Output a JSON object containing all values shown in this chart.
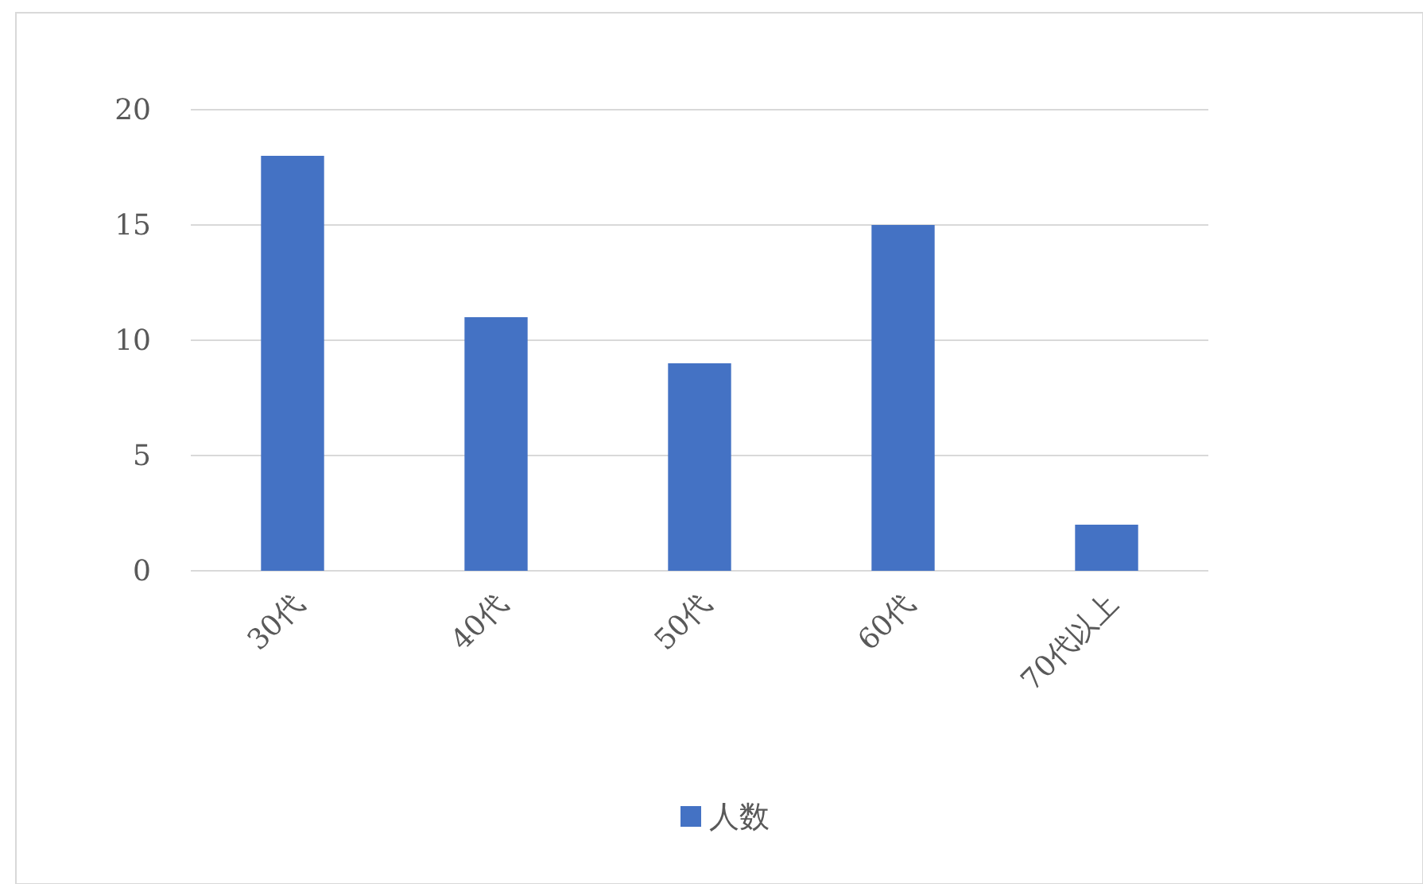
{
  "chart_data": {
    "type": "bar",
    "categories": [
      "30代",
      "40代",
      "50代",
      "60代",
      "70代以上"
    ],
    "series": [
      {
        "name": "人数",
        "color": "#4472c4",
        "values": [
          18,
          11,
          9,
          15,
          2
        ]
      }
    ],
    "ylim": [
      0,
      20
    ],
    "yticks": [
      0,
      5,
      10,
      15,
      20
    ],
    "grid": "y",
    "legend": "bottom"
  }
}
